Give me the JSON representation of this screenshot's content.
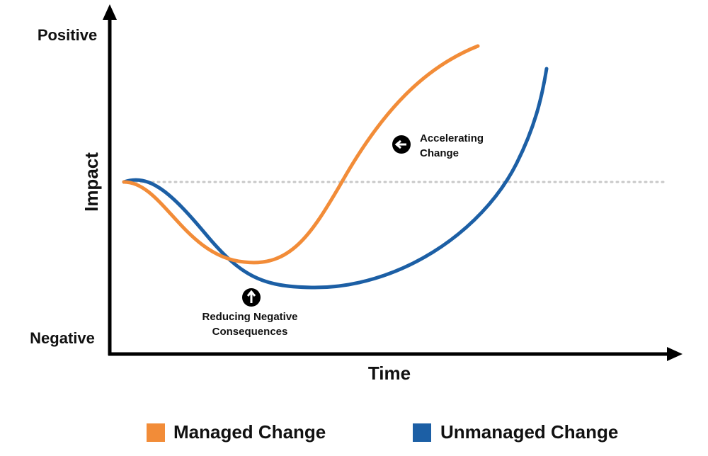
{
  "axes": {
    "y_top": "Positive",
    "y_bottom": "Negative",
    "y_title": "Impact",
    "x_title": "Time"
  },
  "annotations": [
    {
      "lines": [
        "Accelerating",
        "Change"
      ]
    },
    {
      "lines": [
        "Reducing Negative",
        "Consequences"
      ]
    }
  ],
  "legend": [
    "Managed Change",
    "Unmanaged Change"
  ]
}
